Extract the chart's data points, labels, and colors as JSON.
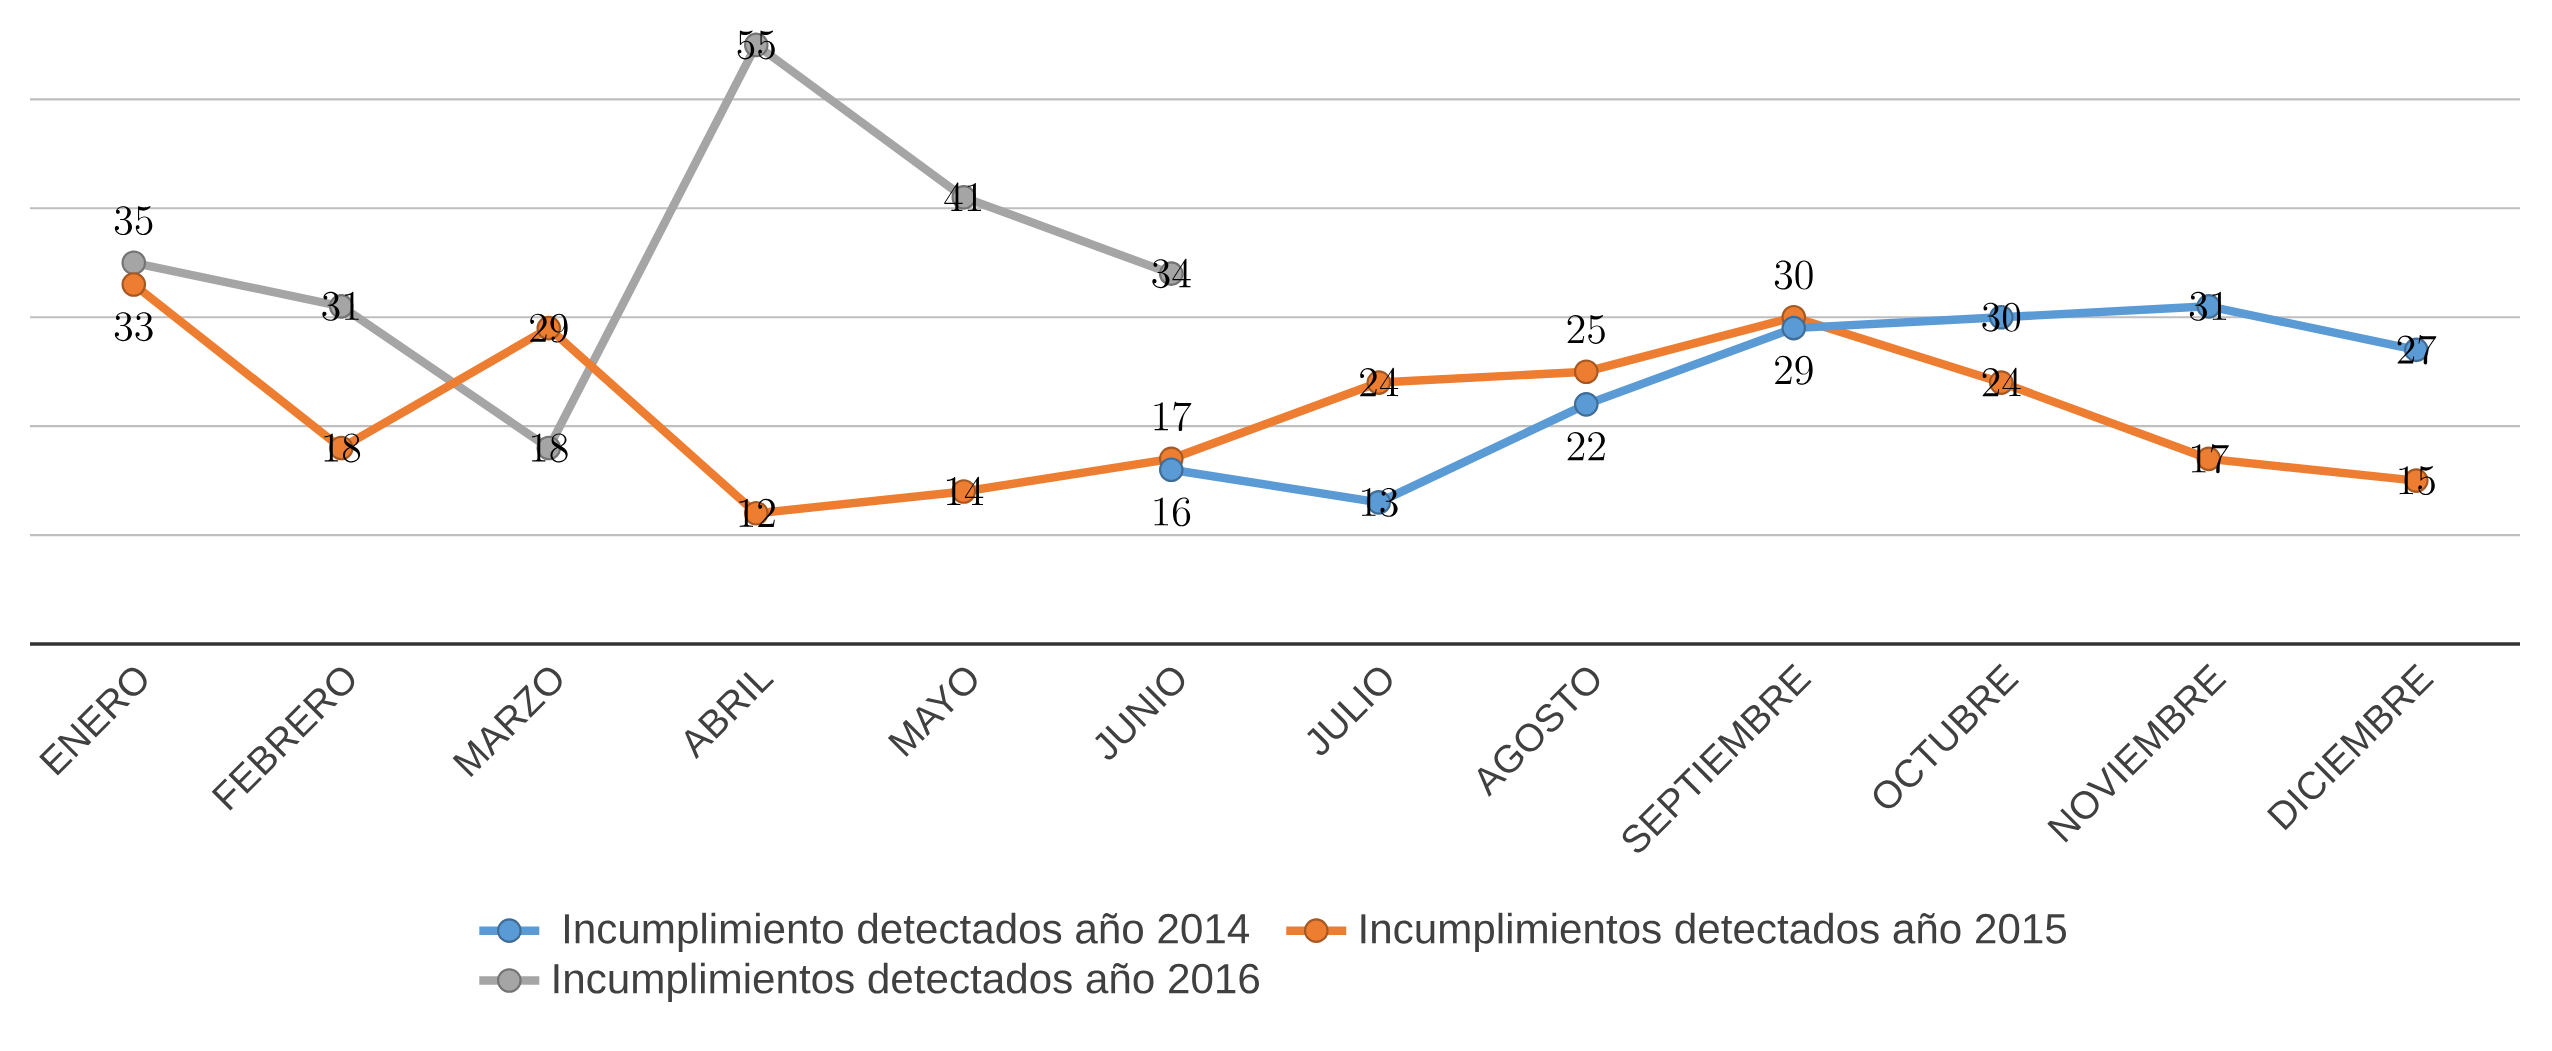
{
  "chart_data": {
    "type": "line",
    "categories": [
      "ENERO",
      "FEBRERO",
      "MARZO",
      "ABRIL",
      "MAYO",
      "JUNIO",
      "JULIO",
      "AGOSTO",
      "SEPTIEMBRE",
      "OCTUBRE",
      "NOVIEMBRE",
      "DICIEMBRE"
    ],
    "series": [
      {
        "name": "Incumplimiento detectados año 2014",
        "color": "#5b9bd5",
        "values": [
          null,
          null,
          null,
          null,
          null,
          16,
          13,
          22,
          29,
          30,
          31,
          27
        ]
      },
      {
        "name": "Incumplimientos detectados año 2015",
        "color": "#ed7d31",
        "values": [
          33,
          18,
          29,
          12,
          14,
          17,
          24,
          25,
          30,
          24,
          17,
          15
        ]
      },
      {
        "name": "Incumplimientos detectados año 2016",
        "color": "#a5a5a5",
        "values": [
          35,
          31,
          18,
          55,
          41,
          34,
          null,
          null,
          null,
          null,
          null,
          null
        ]
      }
    ],
    "tick_labels": "x",
    "grid": "y",
    "legend": "bottom",
    "marker": "circle",
    "line_style": "solid",
    "data_labels": true
  }
}
